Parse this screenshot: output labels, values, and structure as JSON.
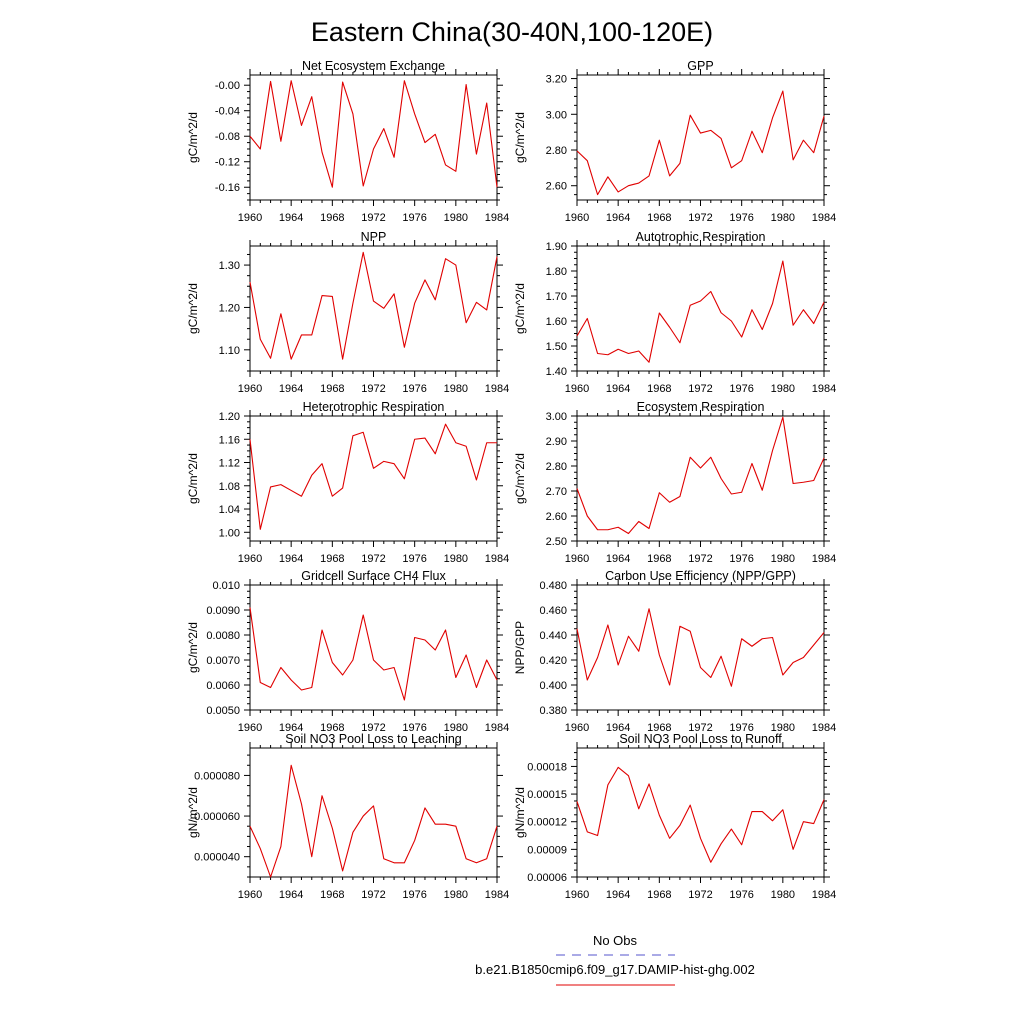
{
  "figure": {
    "title": "Eastern China(30-40N,100-120E)",
    "legend": {
      "obs_label": "No Obs",
      "obs_color": "#5555cc",
      "model_label": "b.e21.B1850cmip6.f09_g17.DAMIP-hist-ghg.002",
      "model_color": "#e00000"
    }
  },
  "chart_data": [
    {
      "type": "line",
      "title": "Net Ecosystem Exchange",
      "ylabel": "gC/m^2/d",
      "xlim": [
        1960,
        1984
      ],
      "xticks": [
        1960,
        1964,
        1968,
        1972,
        1976,
        1980,
        1984
      ],
      "ylim": [
        -0.18,
        0.016
      ],
      "yticks": [
        -0.16,
        -0.12,
        -0.08,
        -0.04,
        0.0
      ],
      "ytick_labels": [
        "-0.16",
        "-0.12",
        "-0.08",
        "-0.04",
        "-0.00"
      ],
      "grid": false,
      "series": [
        {
          "color": "#e00000",
          "x": [
            1960,
            1961,
            1962,
            1963,
            1964,
            1965,
            1966,
            1967,
            1968,
            1969,
            1970,
            1971,
            1972,
            1973,
            1974,
            1975,
            1976,
            1977,
            1978,
            1979,
            1980,
            1981,
            1982,
            1983,
            1984
          ],
          "values": [
            -0.08,
            -0.1,
            0.006,
            -0.088,
            0.007,
            -0.063,
            -0.018,
            -0.105,
            -0.16,
            0.005,
            -0.045,
            -0.158,
            -0.1,
            -0.068,
            -0.113,
            0.007,
            -0.045,
            -0.09,
            -0.077,
            -0.125,
            -0.135,
            0.001,
            -0.108,
            -0.028,
            -0.16
          ]
        }
      ]
    },
    {
      "type": "line",
      "title": "GPP",
      "ylabel": "gC/m^2/d",
      "xlim": [
        1960,
        1984
      ],
      "xticks": [
        1960,
        1964,
        1968,
        1972,
        1976,
        1980,
        1984
      ],
      "ylim": [
        2.52,
        3.22
      ],
      "yticks": [
        2.6,
        2.8,
        3.0,
        3.2
      ],
      "ytick_labels": [
        "2.60",
        "2.80",
        "3.00",
        "3.20"
      ],
      "grid": false,
      "series": [
        {
          "color": "#e00000",
          "x": [
            1960,
            1961,
            1962,
            1963,
            1964,
            1965,
            1966,
            1967,
            1968,
            1969,
            1970,
            1971,
            1972,
            1973,
            1974,
            1975,
            1976,
            1977,
            1978,
            1979,
            1980,
            1981,
            1982,
            1983,
            1984
          ],
          "values": [
            2.795,
            2.74,
            2.55,
            2.65,
            2.565,
            2.6,
            2.615,
            2.655,
            2.855,
            2.655,
            2.725,
            2.995,
            2.895,
            2.91,
            2.865,
            2.7,
            2.74,
            2.905,
            2.785,
            2.98,
            3.13,
            2.745,
            2.855,
            2.785,
            2.99
          ]
        }
      ]
    },
    {
      "type": "line",
      "title": "NPP",
      "ylabel": "gC/m^2/d",
      "xlim": [
        1960,
        1984
      ],
      "xticks": [
        1960,
        1964,
        1968,
        1972,
        1976,
        1980,
        1984
      ],
      "ylim": [
        1.05,
        1.345
      ],
      "yticks": [
        1.1,
        1.2,
        1.3
      ],
      "ytick_labels": [
        "1.10",
        "1.20",
        "1.30"
      ],
      "grid": false,
      "series": [
        {
          "color": "#e00000",
          "x": [
            1960,
            1961,
            1962,
            1963,
            1964,
            1965,
            1966,
            1967,
            1968,
            1969,
            1970,
            1971,
            1972,
            1973,
            1974,
            1975,
            1976,
            1977,
            1978,
            1979,
            1980,
            1981,
            1982,
            1983,
            1984
          ],
          "values": [
            1.26,
            1.125,
            1.08,
            1.185,
            1.078,
            1.135,
            1.135,
            1.228,
            1.226,
            1.078,
            1.21,
            1.33,
            1.215,
            1.198,
            1.232,
            1.106,
            1.21,
            1.265,
            1.218,
            1.315,
            1.3,
            1.164,
            1.212,
            1.194,
            1.32
          ]
        }
      ]
    },
    {
      "type": "line",
      "title": "Autotrophic Respiration",
      "ylabel": "gC/m^2/d",
      "xlim": [
        1960,
        1984
      ],
      "xticks": [
        1960,
        1964,
        1968,
        1972,
        1976,
        1980,
        1984
      ],
      "ylim": [
        1.4,
        1.9
      ],
      "yticks": [
        1.4,
        1.5,
        1.6,
        1.7,
        1.8,
        1.9
      ],
      "ytick_labels": [
        "1.40",
        "1.50",
        "1.60",
        "1.70",
        "1.80",
        "1.90"
      ],
      "grid": false,
      "series": [
        {
          "color": "#e00000",
          "x": [
            1960,
            1961,
            1962,
            1963,
            1964,
            1965,
            1966,
            1967,
            1968,
            1969,
            1970,
            1971,
            1972,
            1973,
            1974,
            1975,
            1976,
            1977,
            1978,
            1979,
            1980,
            1981,
            1982,
            1983,
            1984
          ],
          "values": [
            1.54,
            1.61,
            1.47,
            1.465,
            1.487,
            1.47,
            1.48,
            1.435,
            1.632,
            1.575,
            1.513,
            1.663,
            1.68,
            1.718,
            1.633,
            1.6,
            1.536,
            1.645,
            1.566,
            1.67,
            1.84,
            1.583,
            1.645,
            1.59,
            1.675
          ]
        }
      ]
    },
    {
      "type": "line",
      "title": "Heterotrophic Respiration",
      "ylabel": "gC/m^2/d",
      "xlim": [
        1960,
        1984
      ],
      "xticks": [
        1960,
        1964,
        1968,
        1972,
        1976,
        1980,
        1984
      ],
      "ylim": [
        0.985,
        1.2
      ],
      "yticks": [
        1.0,
        1.04,
        1.08,
        1.12,
        1.16,
        1.2
      ],
      "ytick_labels": [
        "1.00",
        "1.04",
        "1.08",
        "1.12",
        "1.16",
        "1.20"
      ],
      "grid": false,
      "series": [
        {
          "color": "#e00000",
          "x": [
            1960,
            1961,
            1962,
            1963,
            1964,
            1965,
            1966,
            1967,
            1968,
            1969,
            1970,
            1971,
            1972,
            1973,
            1974,
            1975,
            1976,
            1977,
            1978,
            1979,
            1980,
            1981,
            1982,
            1983,
            1984
          ],
          "values": [
            1.16,
            1.005,
            1.078,
            1.082,
            1.072,
            1.062,
            1.098,
            1.118,
            1.062,
            1.076,
            1.166,
            1.172,
            1.11,
            1.122,
            1.118,
            1.092,
            1.16,
            1.162,
            1.135,
            1.186,
            1.154,
            1.148,
            1.09,
            1.154,
            1.154
          ]
        }
      ]
    },
    {
      "type": "line",
      "title": "Ecosystem Respiration",
      "ylabel": "gC/m^2/d",
      "xlim": [
        1960,
        1984
      ],
      "xticks": [
        1960,
        1964,
        1968,
        1972,
        1976,
        1980,
        1984
      ],
      "ylim": [
        2.5,
        3.0
      ],
      "yticks": [
        2.5,
        2.6,
        2.7,
        2.8,
        2.9,
        3.0
      ],
      "ytick_labels": [
        "2.50",
        "2.60",
        "2.70",
        "2.80",
        "2.90",
        "3.00"
      ],
      "grid": false,
      "series": [
        {
          "color": "#e00000",
          "x": [
            1960,
            1961,
            1962,
            1963,
            1964,
            1965,
            1966,
            1967,
            1968,
            1969,
            1970,
            1971,
            1972,
            1973,
            1974,
            1975,
            1976,
            1977,
            1978,
            1979,
            1980,
            1981,
            1982,
            1983,
            1984
          ],
          "values": [
            2.71,
            2.6,
            2.545,
            2.545,
            2.555,
            2.53,
            2.578,
            2.55,
            2.693,
            2.655,
            2.678,
            2.835,
            2.792,
            2.835,
            2.75,
            2.688,
            2.695,
            2.81,
            2.703,
            2.862,
            2.995,
            2.73,
            2.735,
            2.742,
            2.832
          ]
        }
      ]
    },
    {
      "type": "line",
      "title": "Gridcell Surface CH4 Flux",
      "ylabel": "gC/m^2/d",
      "xlim": [
        1960,
        1984
      ],
      "xticks": [
        1960,
        1964,
        1968,
        1972,
        1976,
        1980,
        1984
      ],
      "ylim": [
        0.005,
        0.01
      ],
      "yticks": [
        0.005,
        0.006,
        0.007,
        0.008,
        0.009,
        0.01
      ],
      "ytick_labels": [
        "0.0050",
        "0.0060",
        "0.0070",
        "0.0080",
        "0.0090",
        "0.010"
      ],
      "grid": false,
      "series": [
        {
          "color": "#e00000",
          "x": [
            1960,
            1961,
            1962,
            1963,
            1964,
            1965,
            1966,
            1967,
            1968,
            1969,
            1970,
            1971,
            1972,
            1973,
            1974,
            1975,
            1976,
            1977,
            1978,
            1979,
            1980,
            1981,
            1982,
            1983,
            1984
          ],
          "values": [
            0.0091,
            0.0061,
            0.0059,
            0.0067,
            0.0062,
            0.0058,
            0.0059,
            0.0082,
            0.0069,
            0.0064,
            0.007,
            0.0088,
            0.007,
            0.0066,
            0.0067,
            0.0054,
            0.0079,
            0.0078,
            0.0074,
            0.0082,
            0.0063,
            0.0072,
            0.0059,
            0.007,
            0.0062
          ]
        }
      ]
    },
    {
      "type": "line",
      "title": "Carbon Use Efficiency (NPP/GPP)",
      "ylabel": "NPP/GPP",
      "xlim": [
        1960,
        1984
      ],
      "xticks": [
        1960,
        1964,
        1968,
        1972,
        1976,
        1980,
        1984
      ],
      "ylim": [
        0.38,
        0.48
      ],
      "yticks": [
        0.38,
        0.4,
        0.42,
        0.44,
        0.46,
        0.48
      ],
      "ytick_labels": [
        "0.380",
        "0.400",
        "0.420",
        "0.440",
        "0.460",
        "0.480"
      ],
      "grid": false,
      "series": [
        {
          "color": "#e00000",
          "x": [
            1960,
            1961,
            1962,
            1963,
            1964,
            1965,
            1966,
            1967,
            1968,
            1969,
            1970,
            1971,
            1972,
            1973,
            1974,
            1975,
            1976,
            1977,
            1978,
            1979,
            1980,
            1981,
            1982,
            1983,
            1984
          ],
          "values": [
            0.445,
            0.404,
            0.422,
            0.448,
            0.416,
            0.439,
            0.427,
            0.461,
            0.424,
            0.4,
            0.447,
            0.443,
            0.414,
            0.406,
            0.423,
            0.399,
            0.437,
            0.431,
            0.437,
            0.438,
            0.408,
            0.418,
            0.422,
            0.432,
            0.442
          ]
        }
      ]
    },
    {
      "type": "line",
      "title": "Soil NO3 Pool Loss to Leaching",
      "ylabel": "gN/m^2/d",
      "xlim": [
        1960,
        1984
      ],
      "xticks": [
        1960,
        1964,
        1968,
        1972,
        1976,
        1980,
        1984
      ],
      "ylim": [
        3e-05,
        9.35e-05
      ],
      "yticks": [
        4e-05,
        6e-05,
        8e-05
      ],
      "ytick_labels": [
        "0.000040",
        "0.000060",
        "0.000080"
      ],
      "grid": false,
      "series": [
        {
          "color": "#e00000",
          "x": [
            1960,
            1961,
            1962,
            1963,
            1964,
            1965,
            1966,
            1967,
            1968,
            1969,
            1970,
            1971,
            1972,
            1973,
            1974,
            1975,
            1976,
            1977,
            1978,
            1979,
            1980,
            1981,
            1982,
            1983,
            1984
          ],
          "values": [
            5.5e-05,
            4.4e-05,
            3e-05,
            4.5e-05,
            8.5e-05,
            6.6e-05,
            4e-05,
            7e-05,
            5.4e-05,
            3.3e-05,
            5.2e-05,
            6e-05,
            6.5e-05,
            3.9e-05,
            3.7e-05,
            3.7e-05,
            4.8e-05,
            6.4e-05,
            5.6e-05,
            5.6e-05,
            5.5e-05,
            3.9e-05,
            3.7e-05,
            3.9e-05,
            5.5e-05
          ]
        }
      ]
    },
    {
      "type": "line",
      "title": "Soil NO3 Pool Loss to Runoff",
      "ylabel": "gN/m^2/d",
      "xlim": [
        1960,
        1984
      ],
      "xticks": [
        1960,
        1964,
        1968,
        1972,
        1976,
        1980,
        1984
      ],
      "ylim": [
        6e-05,
        0.0002
      ],
      "yticks": [
        6e-05,
        9e-05,
        0.00012,
        0.00015,
        0.00018
      ],
      "ytick_labels": [
        "0.00006",
        "0.00009",
        "0.00012",
        "0.00015",
        "0.00018"
      ],
      "grid": false,
      "series": [
        {
          "color": "#e00000",
          "x": [
            1960,
            1961,
            1962,
            1963,
            1964,
            1965,
            1966,
            1967,
            1968,
            1969,
            1970,
            1971,
            1972,
            1973,
            1974,
            1975,
            1976,
            1977,
            1978,
            1979,
            1980,
            1981,
            1982,
            1983,
            1984
          ],
          "values": [
            0.000142,
            0.000109,
            0.000105,
            0.00016,
            0.000179,
            0.00017,
            0.000134,
            0.000161,
            0.000127,
            0.000102,
            0.000116,
            0.000138,
            0.000102,
            7.6e-05,
            9.6e-05,
            0.000112,
            9.5e-05,
            0.000131,
            0.000131,
            0.000121,
            0.000133,
            9e-05,
            0.00012,
            0.000118,
            0.000144
          ]
        }
      ]
    }
  ]
}
